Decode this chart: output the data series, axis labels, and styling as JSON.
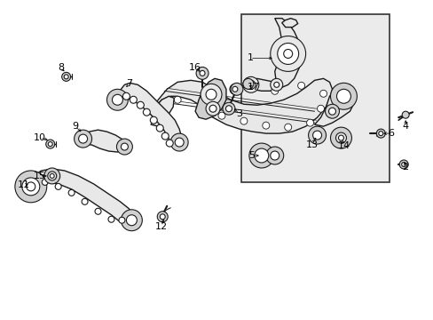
{
  "bg": "#ffffff",
  "fg": "#000000",
  "part_edge": "#1a1a1a",
  "part_face": "#e8e8e8",
  "part_face2": "#d0d0d0",
  "inset_bg": "#ebebeb",
  "inset_border": "#333333",
  "lw_main": 1.0,
  "lw_thin": 0.5,
  "lw_thick": 1.5,
  "label_fs": 8,
  "fig_w": 4.89,
  "fig_h": 3.6,
  "dpi": 100
}
